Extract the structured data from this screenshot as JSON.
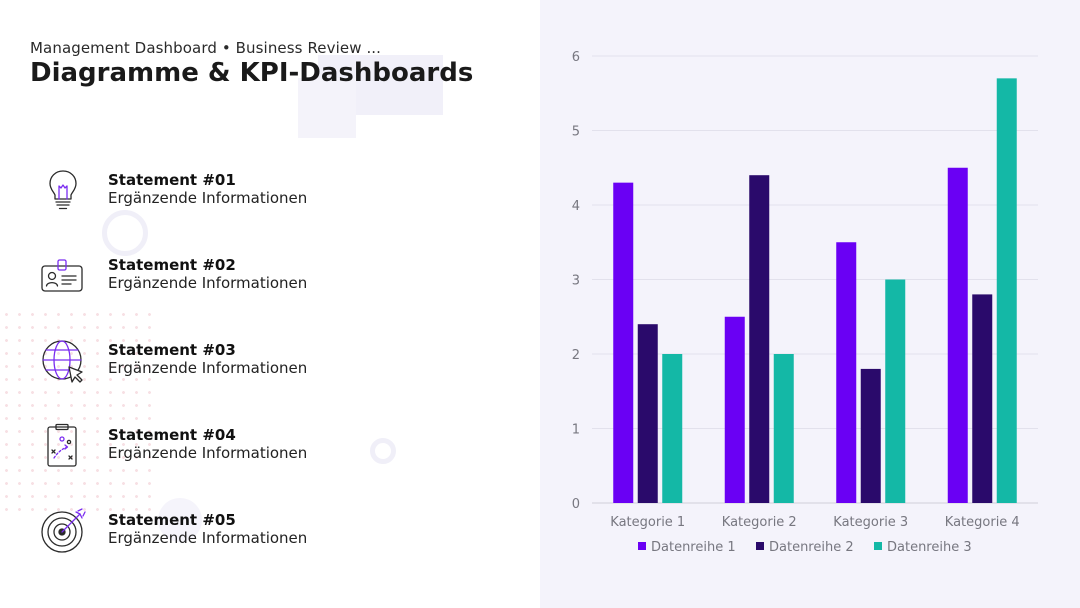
{
  "header": {
    "subtitle": "Management Dashboard • Business Review ...",
    "title": "Diagramme & KPI-Dashboards"
  },
  "statements": [
    {
      "title": "Statement #01",
      "info": "Ergänzende Informationen",
      "icon": "lightbulb-icon"
    },
    {
      "title": "Statement #02",
      "info": "Ergänzende Informationen",
      "icon": "id-badge-icon"
    },
    {
      "title": "Statement #03",
      "info": "Ergänzende Informationen",
      "icon": "globe-cursor-icon"
    },
    {
      "title": "Statement #04",
      "info": "Ergänzende Informationen",
      "icon": "tactics-clipboard-icon"
    },
    {
      "title": "Statement #05",
      "info": "Ergänzende Informationen",
      "icon": "target-icon"
    }
  ],
  "colors": {
    "accent_purple": "#6a00f4",
    "dark_purple": "#2a0a6b",
    "teal": "#14b8a6",
    "panel_bg": "#f4f3fb"
  },
  "chart_data": {
    "type": "bar",
    "title": "",
    "xlabel": "",
    "ylabel": "",
    "categories": [
      "Kategorie 1",
      "Kategorie 2",
      "Kategorie 3",
      "Kategorie 4"
    ],
    "series": [
      {
        "name": "Datenreihe 1",
        "values": [
          4.3,
          2.5,
          3.5,
          4.5
        ],
        "color": "#6a00f4"
      },
      {
        "name": "Datenreihe 2",
        "values": [
          2.4,
          4.4,
          1.8,
          2.8
        ],
        "color": "#2a0a6b"
      },
      {
        "name": "Datenreihe 3",
        "values": [
          2.0,
          2.0,
          3.0,
          5.7
        ],
        "color": "#14b8a6"
      }
    ],
    "ylim": [
      0,
      6
    ],
    "yticks": [
      0,
      1,
      2,
      3,
      4,
      5,
      6
    ],
    "grid": true,
    "legend": "bottom"
  }
}
